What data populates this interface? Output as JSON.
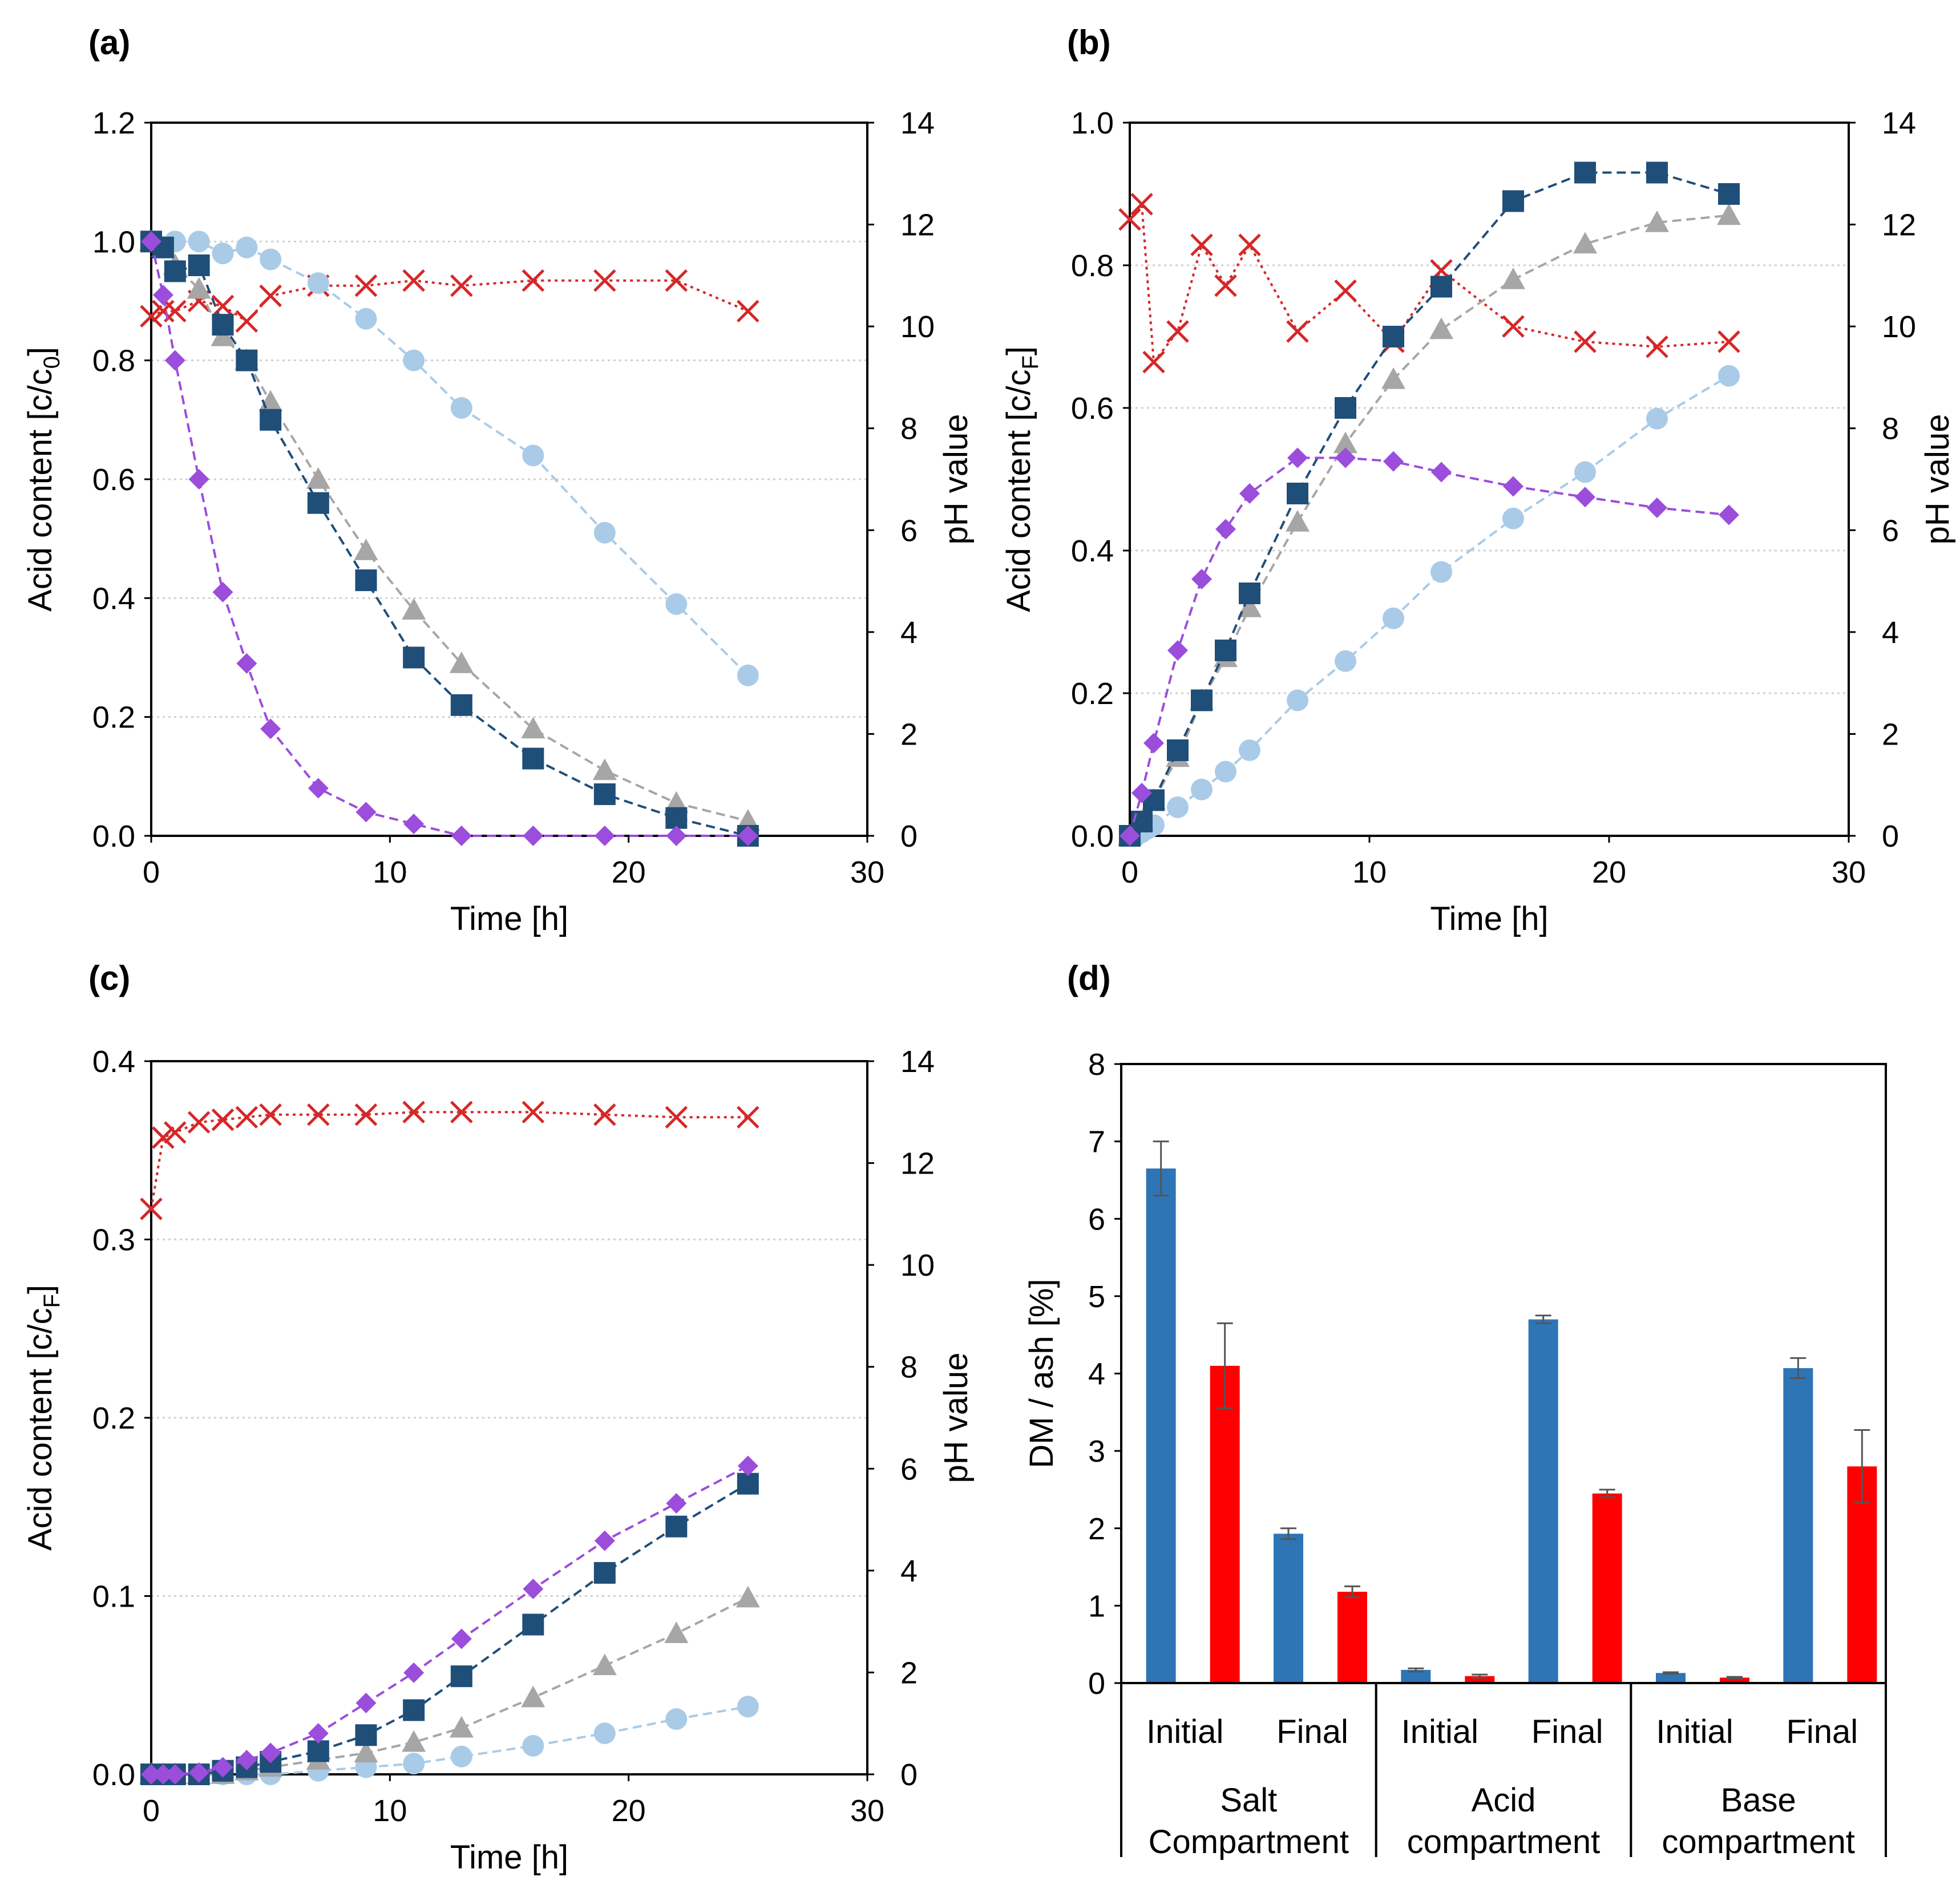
{
  "colors": {
    "ammonium": "#d62728",
    "purple": "#9b4ddb",
    "navy": "#1f4e79",
    "grey": "#a6a6a6",
    "lightblue": "#a9cbe8",
    "dm_blue": "#2e75b6",
    "ash_red": "#ff0000"
  },
  "chart_data": [
    {
      "panel": "(a)",
      "type": "line",
      "xlabel": "Time [h]",
      "ylabel": "Acid content [c/c",
      "ylabel_sub": "0",
      "ylabel_end": "]",
      "y2label": "pH value",
      "xlim": [
        0,
        30
      ],
      "ylim": [
        0,
        1.2
      ],
      "y2lim": [
        0,
        14
      ],
      "xticks": [
        "0",
        "10",
        "20",
        "30"
      ],
      "yticks": [
        "0.0",
        "0.2",
        "0.4",
        "0.6",
        "0.8",
        "1.0",
        "1.2"
      ],
      "y2ticks": [
        "0",
        "2",
        "4",
        "6",
        "8",
        "10",
        "12",
        "14"
      ],
      "series": [
        {
          "name": "pH",
          "axis": "right",
          "marker": "x",
          "color": "#d62728",
          "dash": "dot",
          "x": [
            0,
            0.5,
            1,
            2,
            3,
            4,
            5,
            7,
            9,
            11,
            13,
            16,
            19,
            22,
            25
          ],
          "y": [
            10.2,
            10.3,
            10.3,
            10.5,
            10.4,
            10.1,
            10.6,
            10.8,
            10.8,
            10.9,
            10.8,
            10.9,
            10.9,
            10.9,
            10.3
          ]
        },
        {
          "name": "lightblue-circles",
          "axis": "left",
          "marker": "circle",
          "color": "#a9cbe8",
          "dash": "dash",
          "x": [
            0,
            0.5,
            1,
            2,
            3,
            4,
            5,
            7,
            9,
            11,
            13,
            16,
            19,
            22,
            25
          ],
          "y": [
            1.0,
            0.99,
            1.0,
            1.0,
            0.98,
            0.99,
            0.97,
            0.93,
            0.87,
            0.8,
            0.72,
            0.64,
            0.51,
            0.39,
            0.27
          ]
        },
        {
          "name": "grey-triangles",
          "axis": "left",
          "marker": "triangle",
          "color": "#a6a6a6",
          "dash": "dash",
          "x": [
            0,
            0.5,
            1,
            2,
            3,
            4,
            5,
            7,
            9,
            11,
            13,
            16,
            19,
            22,
            25
          ],
          "y": [
            1.0,
            0.99,
            0.96,
            0.92,
            0.84,
            0.8,
            0.73,
            0.6,
            0.48,
            0.38,
            0.29,
            0.18,
            0.11,
            0.055,
            0.025
          ]
        },
        {
          "name": "navy-squares",
          "axis": "left",
          "marker": "square",
          "color": "#1f4e79",
          "dash": "dash",
          "x": [
            0,
            0.5,
            1,
            2,
            3,
            4,
            5,
            7,
            9,
            11,
            13,
            16,
            19,
            22,
            25
          ],
          "y": [
            1.0,
            0.99,
            0.95,
            0.96,
            0.86,
            0.8,
            0.7,
            0.56,
            0.43,
            0.3,
            0.22,
            0.13,
            0.07,
            0.03,
            0.0
          ]
        },
        {
          "name": "purple-diamonds",
          "axis": "left",
          "marker": "diamond",
          "color": "#9b4ddb",
          "dash": "dash",
          "x": [
            0,
            0.5,
            1,
            2,
            3,
            4,
            5,
            7,
            9,
            11,
            13,
            16,
            19,
            22,
            25
          ],
          "y": [
            1.0,
            0.91,
            0.8,
            0.6,
            0.41,
            0.29,
            0.18,
            0.08,
            0.04,
            0.02,
            0.0,
            0.0,
            0.0,
            0.0,
            0.0
          ]
        }
      ]
    },
    {
      "panel": "(b)",
      "type": "line",
      "xlabel": "Time [h]",
      "ylabel": "Acid content [c/c",
      "ylabel_sub": "F",
      "ylabel_end": "]",
      "y2label": "pH value",
      "xlim": [
        0,
        30
      ],
      "ylim": [
        0,
        1.0
      ],
      "y2lim": [
        0,
        14
      ],
      "xticks": [
        "0",
        "10",
        "20",
        "30"
      ],
      "yticks": [
        "0.0",
        "0.2",
        "0.4",
        "0.6",
        "0.8",
        "1.0"
      ],
      "y2ticks": [
        "0",
        "2",
        "4",
        "6",
        "8",
        "10",
        "12",
        "14"
      ],
      "series": [
        {
          "name": "pH",
          "axis": "right",
          "marker": "x",
          "color": "#d62728",
          "dash": "dot",
          "x": [
            0,
            0.5,
            1,
            2,
            3,
            4,
            5,
            7,
            9,
            11,
            13,
            16,
            19,
            22,
            25
          ],
          "y": [
            12.1,
            12.4,
            9.3,
            9.9,
            11.6,
            10.8,
            11.6,
            9.9,
            10.7,
            9.7,
            11.1,
            10.0,
            9.7,
            9.6,
            9.7
          ]
        },
        {
          "name": "lightblue-circles",
          "axis": "left",
          "marker": "circle",
          "color": "#a9cbe8",
          "dash": "dash",
          "x": [
            0,
            0.25,
            0.5,
            0.75,
            1,
            2,
            3,
            4,
            5,
            7,
            9,
            11,
            13,
            16,
            19,
            22,
            25
          ],
          "y": [
            0.0,
            0.0,
            0.005,
            0.01,
            0.015,
            0.04,
            0.065,
            0.09,
            0.12,
            0.19,
            0.245,
            0.305,
            0.37,
            0.445,
            0.51,
            0.585,
            0.645
          ]
        },
        {
          "name": "grey-triangles",
          "axis": "left",
          "marker": "triangle",
          "color": "#a6a6a6",
          "dash": "dash",
          "x": [
            0,
            0.5,
            1,
            2,
            3,
            4,
            5,
            7,
            9,
            11,
            13,
            16,
            19,
            22,
            25
          ],
          "y": [
            0.0,
            0.02,
            0.05,
            0.11,
            0.19,
            0.25,
            0.32,
            0.44,
            0.55,
            0.64,
            0.71,
            0.78,
            0.83,
            0.86,
            0.87
          ]
        },
        {
          "name": "navy-squares",
          "axis": "left",
          "marker": "square",
          "color": "#1f4e79",
          "dash": "dash",
          "x": [
            0,
            0.5,
            1,
            2,
            3,
            4,
            5,
            7,
            9,
            11,
            13,
            16,
            19,
            22,
            25
          ],
          "y": [
            0.0,
            0.02,
            0.05,
            0.12,
            0.19,
            0.26,
            0.34,
            0.48,
            0.6,
            0.7,
            0.77,
            0.89,
            0.93,
            0.93,
            0.9
          ]
        },
        {
          "name": "purple-diamonds",
          "axis": "left",
          "marker": "diamond",
          "color": "#9b4ddb",
          "dash": "dash",
          "x": [
            0,
            0.5,
            1,
            2,
            3,
            4,
            5,
            7,
            9,
            11,
            13,
            16,
            19,
            22,
            25
          ],
          "y": [
            0.0,
            0.06,
            0.13,
            0.26,
            0.36,
            0.43,
            0.48,
            0.53,
            0.53,
            0.525,
            0.51,
            0.49,
            0.475,
            0.46,
            0.45
          ]
        }
      ]
    },
    {
      "panel": "(c)",
      "type": "line",
      "xlabel": "Time [h]",
      "ylabel": "Acid content [c/c",
      "ylabel_sub": "F",
      "ylabel_end": "]",
      "y2label": "pH value",
      "xlim": [
        0,
        30
      ],
      "ylim": [
        0,
        0.4
      ],
      "y2lim": [
        0,
        14
      ],
      "xticks": [
        "0",
        "10",
        "20",
        "30"
      ],
      "yticks": [
        "0.0",
        "0.1",
        "0.2",
        "0.3",
        "0.4"
      ],
      "y2ticks": [
        "0",
        "2",
        "4",
        "6",
        "8",
        "10",
        "12",
        "14"
      ],
      "series": [
        {
          "name": "pH",
          "axis": "right",
          "marker": "x",
          "color": "#d62728",
          "dash": "dot",
          "x": [
            0,
            0.5,
            1,
            2,
            3,
            4,
            5,
            7,
            9,
            11,
            13,
            16,
            19,
            22,
            25
          ],
          "y": [
            11.1,
            12.5,
            12.6,
            12.8,
            12.85,
            12.9,
            12.95,
            12.95,
            12.95,
            13.0,
            13.0,
            13.0,
            12.95,
            12.9,
            12.9
          ]
        },
        {
          "name": "lightblue-circles",
          "axis": "left",
          "marker": "circle",
          "color": "#a9cbe8",
          "dash": "dash",
          "x": [
            0,
            0.5,
            1,
            2,
            3,
            4,
            5,
            7,
            9,
            11,
            13,
            16,
            19,
            22,
            25
          ],
          "y": [
            0.0,
            0.0,
            0.0,
            0.0,
            0.0,
            0.0,
            0.0,
            0.002,
            0.004,
            0.006,
            0.01,
            0.016,
            0.023,
            0.031,
            0.038
          ]
        },
        {
          "name": "grey-triangles",
          "axis": "left",
          "marker": "triangle",
          "color": "#a6a6a6",
          "dash": "dash",
          "x": [
            0,
            0.5,
            1,
            2,
            3,
            4,
            5,
            7,
            9,
            11,
            13,
            16,
            19,
            22,
            25
          ],
          "y": [
            0.0,
            0.0,
            0.0,
            0.0,
            0.0,
            0.002,
            0.004,
            0.008,
            0.012,
            0.018,
            0.026,
            0.043,
            0.061,
            0.079,
            0.099
          ]
        },
        {
          "name": "navy-squares",
          "axis": "left",
          "marker": "square",
          "color": "#1f4e79",
          "dash": "dash",
          "x": [
            0,
            0.5,
            1,
            2,
            3,
            4,
            5,
            7,
            9,
            11,
            13,
            16,
            19,
            22,
            25
          ],
          "y": [
            0.0,
            0.0,
            0.0,
            0.0,
            0.002,
            0.004,
            0.007,
            0.013,
            0.022,
            0.036,
            0.055,
            0.084,
            0.113,
            0.139,
            0.163
          ]
        },
        {
          "name": "purple-diamonds",
          "axis": "left",
          "marker": "diamond",
          "color": "#9b4ddb",
          "dash": "dash",
          "x": [
            0,
            0.5,
            1,
            2,
            3,
            4,
            5,
            7,
            9,
            11,
            13,
            16,
            19,
            22,
            25
          ],
          "y": [
            0.0,
            0.0,
            0.0,
            0.001,
            0.004,
            0.008,
            0.012,
            0.023,
            0.04,
            0.057,
            0.076,
            0.104,
            0.131,
            0.152,
            0.173
          ]
        }
      ]
    },
    {
      "panel": "(d)",
      "type": "bar",
      "ylabel": "DM / ash [%]",
      "ylim": [
        0,
        8
      ],
      "yticks": [
        "0",
        "1",
        "2",
        "3",
        "4",
        "5",
        "6",
        "7",
        "8"
      ],
      "categories": [
        "Initial",
        "Final",
        "Initial",
        "Final",
        "Initial",
        "Final"
      ],
      "groups": [
        {
          "line1": "Salt",
          "line2": "Compartment"
        },
        {
          "line1": "Acid",
          "line2": "compartment"
        },
        {
          "line1": "Base",
          "line2": "compartment"
        }
      ],
      "series": [
        {
          "name": "DM",
          "color": "#2e75b6",
          "values": [
            6.65,
            1.93,
            0.17,
            4.7,
            0.13,
            4.07
          ],
          "errors": [
            0.35,
            0.07,
            0.02,
            0.05,
            0.01,
            0.13
          ]
        },
        {
          "name": "ash",
          "color": "#ff0000",
          "values": [
            4.1,
            1.18,
            0.09,
            2.45,
            0.07,
            2.8
          ],
          "errors": [
            0.55,
            0.07,
            0.02,
            0.05,
            0.01,
            0.47
          ]
        }
      ]
    }
  ]
}
